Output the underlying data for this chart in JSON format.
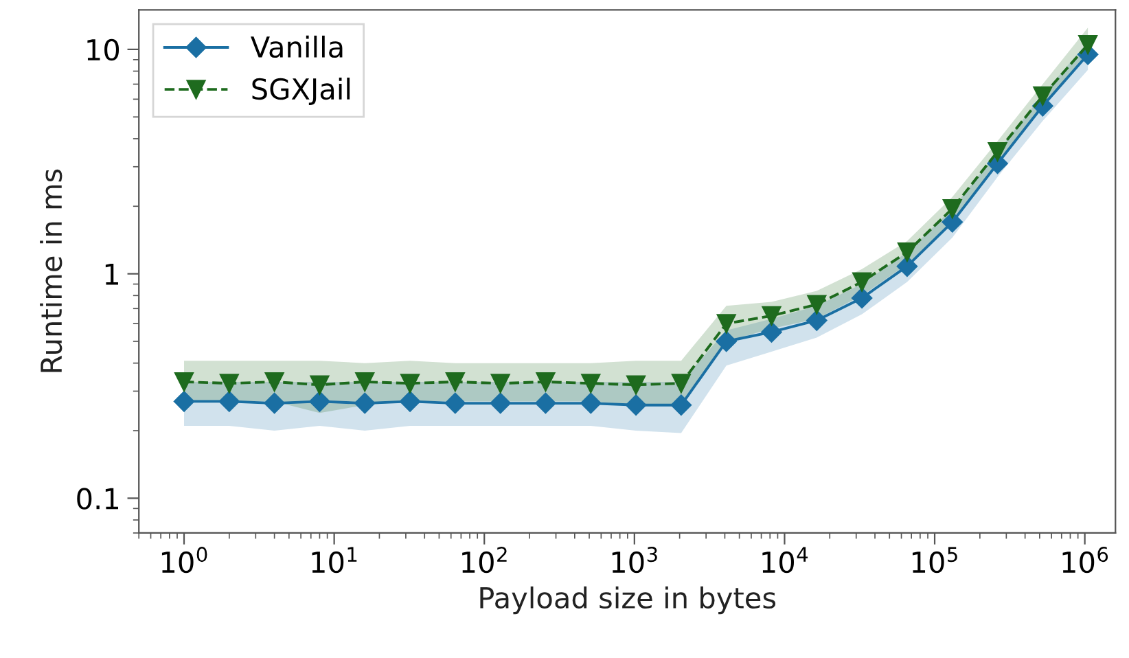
{
  "chart_data": {
    "type": "line",
    "xlabel": "Payload size in bytes",
    "ylabel": "Runtime in ms",
    "log": "xy",
    "x": [
      1,
      2,
      4,
      8,
      16,
      32,
      64,
      128,
      256,
      512,
      1024,
      2048,
      4096,
      8192,
      16384,
      32768,
      65536,
      131072,
      262144,
      524288,
      1048576
    ],
    "series": [
      {
        "name": "Vanilla",
        "color": "#1a6fa3",
        "marker": "diamond",
        "line_style": "solid",
        "values": [
          0.27,
          0.27,
          0.265,
          0.27,
          0.265,
          0.27,
          0.265,
          0.265,
          0.265,
          0.265,
          0.26,
          0.26,
          0.5,
          0.55,
          0.62,
          0.78,
          1.08,
          1.7,
          3.1,
          5.6,
          9.5
        ],
        "lower": [
          0.21,
          0.21,
          0.2,
          0.21,
          0.2,
          0.21,
          0.21,
          0.21,
          0.21,
          0.21,
          0.2,
          0.195,
          0.39,
          0.45,
          0.52,
          0.66,
          0.92,
          1.45,
          2.7,
          4.8,
          8.1
        ],
        "upper": [
          0.33,
          0.33,
          0.33,
          0.33,
          0.33,
          0.33,
          0.33,
          0.33,
          0.33,
          0.33,
          0.33,
          0.33,
          0.56,
          0.63,
          0.72,
          0.9,
          1.25,
          1.95,
          3.5,
          6.3,
          10.8
        ]
      },
      {
        "name": "SGXJail",
        "color": "#1e6b1e",
        "marker": "triangle",
        "line_style": "dashed",
        "values": [
          0.33,
          0.325,
          0.33,
          0.32,
          0.33,
          0.325,
          0.33,
          0.325,
          0.33,
          0.325,
          0.32,
          0.325,
          0.6,
          0.65,
          0.73,
          0.92,
          1.25,
          1.95,
          3.5,
          6.2,
          10.5
        ],
        "lower": [
          0.27,
          0.27,
          0.27,
          0.24,
          0.26,
          0.27,
          0.27,
          0.27,
          0.27,
          0.27,
          0.26,
          0.26,
          0.5,
          0.57,
          0.63,
          0.8,
          1.1,
          1.7,
          3.1,
          5.5,
          9.5
        ],
        "upper": [
          0.41,
          0.41,
          0.41,
          0.41,
          0.4,
          0.41,
          0.4,
          0.4,
          0.4,
          0.4,
          0.41,
          0.41,
          0.72,
          0.75,
          0.84,
          1.05,
          1.4,
          2.2,
          3.9,
          7.0,
          12.5
        ]
      }
    ],
    "xlim": [
      0.5,
      1600000
    ],
    "ylim": [
      0.07,
      15
    ],
    "xticks": [
      {
        "value": 1,
        "label": "10$^{0}$"
      },
      {
        "value": 10,
        "label": "10$^{1}$"
      },
      {
        "value": 100,
        "label": "10$^{2}$"
      },
      {
        "value": 1000,
        "label": "10$^{3}$"
      },
      {
        "value": 10000,
        "label": "10$^{4}$"
      },
      {
        "value": 100000,
        "label": "10$^{5}$"
      },
      {
        "value": 1000000,
        "label": "10$^{6}$"
      }
    ],
    "yticks": [
      0.1,
      1,
      10
    ],
    "grid": false,
    "legend": "top left"
  }
}
